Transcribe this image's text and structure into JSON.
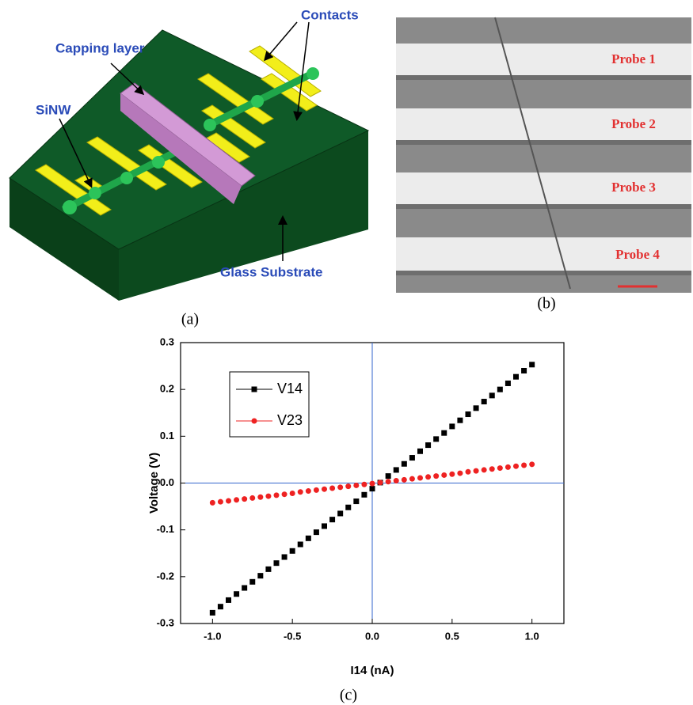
{
  "panel_a": {
    "labels": {
      "contacts": "Contacts",
      "capping_layer": "Capping layer",
      "sinw": "SiNW",
      "glass_substrate": "Glass Substrate"
    },
    "caption": "(a)"
  },
  "panel_b": {
    "probes": [
      "Probe 1",
      "Probe 2",
      "Probe 3",
      "Probe 4"
    ],
    "caption": "(b)"
  },
  "chart_data": {
    "type": "scatter",
    "caption": "(c)",
    "x_label": "I14 (nA)",
    "y_label": "Voltage (V)",
    "x": [
      -1,
      -0.95,
      -0.9,
      -0.85,
      -0.8,
      -0.75,
      -0.7,
      -0.65,
      -0.6,
      -0.55,
      -0.5,
      -0.45,
      -0.4,
      -0.35,
      -0.3,
      -0.25,
      -0.2,
      -0.15,
      -0.1,
      -0.05,
      0,
      0.05,
      0.1,
      0.15,
      0.2,
      0.25,
      0.3,
      0.35,
      0.4,
      0.45,
      0.5,
      0.55,
      0.6,
      0.65,
      0.7,
      0.75,
      0.8,
      0.85,
      0.9,
      0.95,
      1
    ],
    "series": [
      {
        "name": "V14",
        "color": "#000000",
        "marker": "square",
        "values": [
          -0.277,
          -0.264,
          -0.25,
          -0.237,
          -0.224,
          -0.211,
          -0.198,
          -0.184,
          -0.171,
          -0.158,
          -0.145,
          -0.131,
          -0.118,
          -0.105,
          -0.092,
          -0.078,
          -0.065,
          -0.052,
          -0.039,
          -0.025,
          -0.012,
          0.001,
          0.015,
          0.028,
          0.041,
          0.054,
          0.068,
          0.081,
          0.094,
          0.107,
          0.121,
          0.134,
          0.147,
          0.16,
          0.174,
          0.187,
          0.2,
          0.213,
          0.227,
          0.24,
          0.253
        ]
      },
      {
        "name": "V23",
        "color": "#ee2222",
        "marker": "circle",
        "values": [
          -0.042,
          -0.04,
          -0.038,
          -0.036,
          -0.034,
          -0.032,
          -0.03,
          -0.028,
          -0.026,
          -0.024,
          -0.022,
          -0.019,
          -0.017,
          -0.015,
          -0.013,
          -0.011,
          -0.009,
          -0.007,
          -0.005,
          -0.003,
          -0.001,
          0.001,
          0.003,
          0.005,
          0.007,
          0.009,
          0.011,
          0.013,
          0.015,
          0.017,
          0.019,
          0.021,
          0.024,
          0.026,
          0.028,
          0.03,
          0.032,
          0.034,
          0.036,
          0.038,
          0.04
        ]
      }
    ],
    "xlim": [
      -1.2,
      1.2
    ],
    "xticks": [
      {
        "value": -1,
        "label": "-1.0"
      },
      -0.5,
      {
        "value": 0,
        "label": "0.0"
      },
      0.5,
      {
        "value": 1,
        "label": "1.0"
      }
    ],
    "ylim": [
      -0.3,
      0.3
    ],
    "yticks": [
      -0.3,
      -0.2,
      -0.1,
      {
        "value": 0,
        "label": "0.0"
      },
      0.1,
      0.2,
      0.3
    ],
    "zero_lines": true,
    "zero_line_color": "#3366cc",
    "legend": "upper left"
  }
}
